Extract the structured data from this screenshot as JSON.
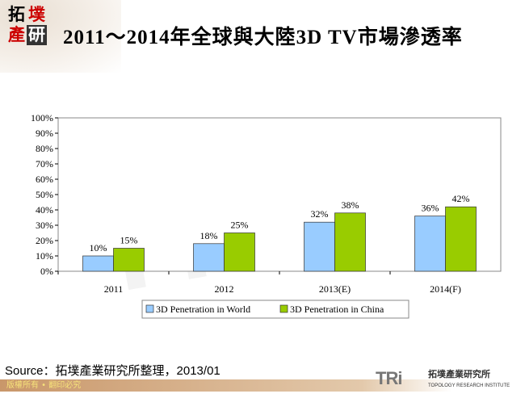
{
  "logo": {
    "chars": [
      "拓",
      "墣",
      "產",
      "研"
    ]
  },
  "title": "2011～2014年全球與大陸3D TV市場滲透率",
  "chart_data": {
    "type": "bar",
    "categories": [
      "2011",
      "2012",
      "2013(E)",
      "2014(F)"
    ],
    "series": [
      {
        "name": "3D Penetration in World",
        "values": [
          10,
          18,
          32,
          36
        ],
        "labels": [
          "10%",
          "18%",
          "32%",
          "36%"
        ],
        "color": "#99ccff"
      },
      {
        "name": "3D Penetration in China",
        "values": [
          15,
          25,
          38,
          42
        ],
        "labels": [
          "15%",
          "25%",
          "38%",
          "42%"
        ],
        "color": "#99cc00"
      }
    ],
    "ylim": [
      0,
      100
    ],
    "yticks": [
      "0%",
      "10%",
      "20%",
      "30%",
      "40%",
      "50%",
      "60%",
      "70%",
      "80%",
      "90%",
      "100%"
    ],
    "grid": false,
    "legend": "bottom"
  },
  "source": "Source：拓墣產業研究所整理，2013/01",
  "footer": "版權所有 • 翻印必究",
  "brand": {
    "tri": "TRi",
    "cn": "拓墣產業研究所",
    "en": "TOPOLOGY RESEARCH INSTITUTE"
  }
}
